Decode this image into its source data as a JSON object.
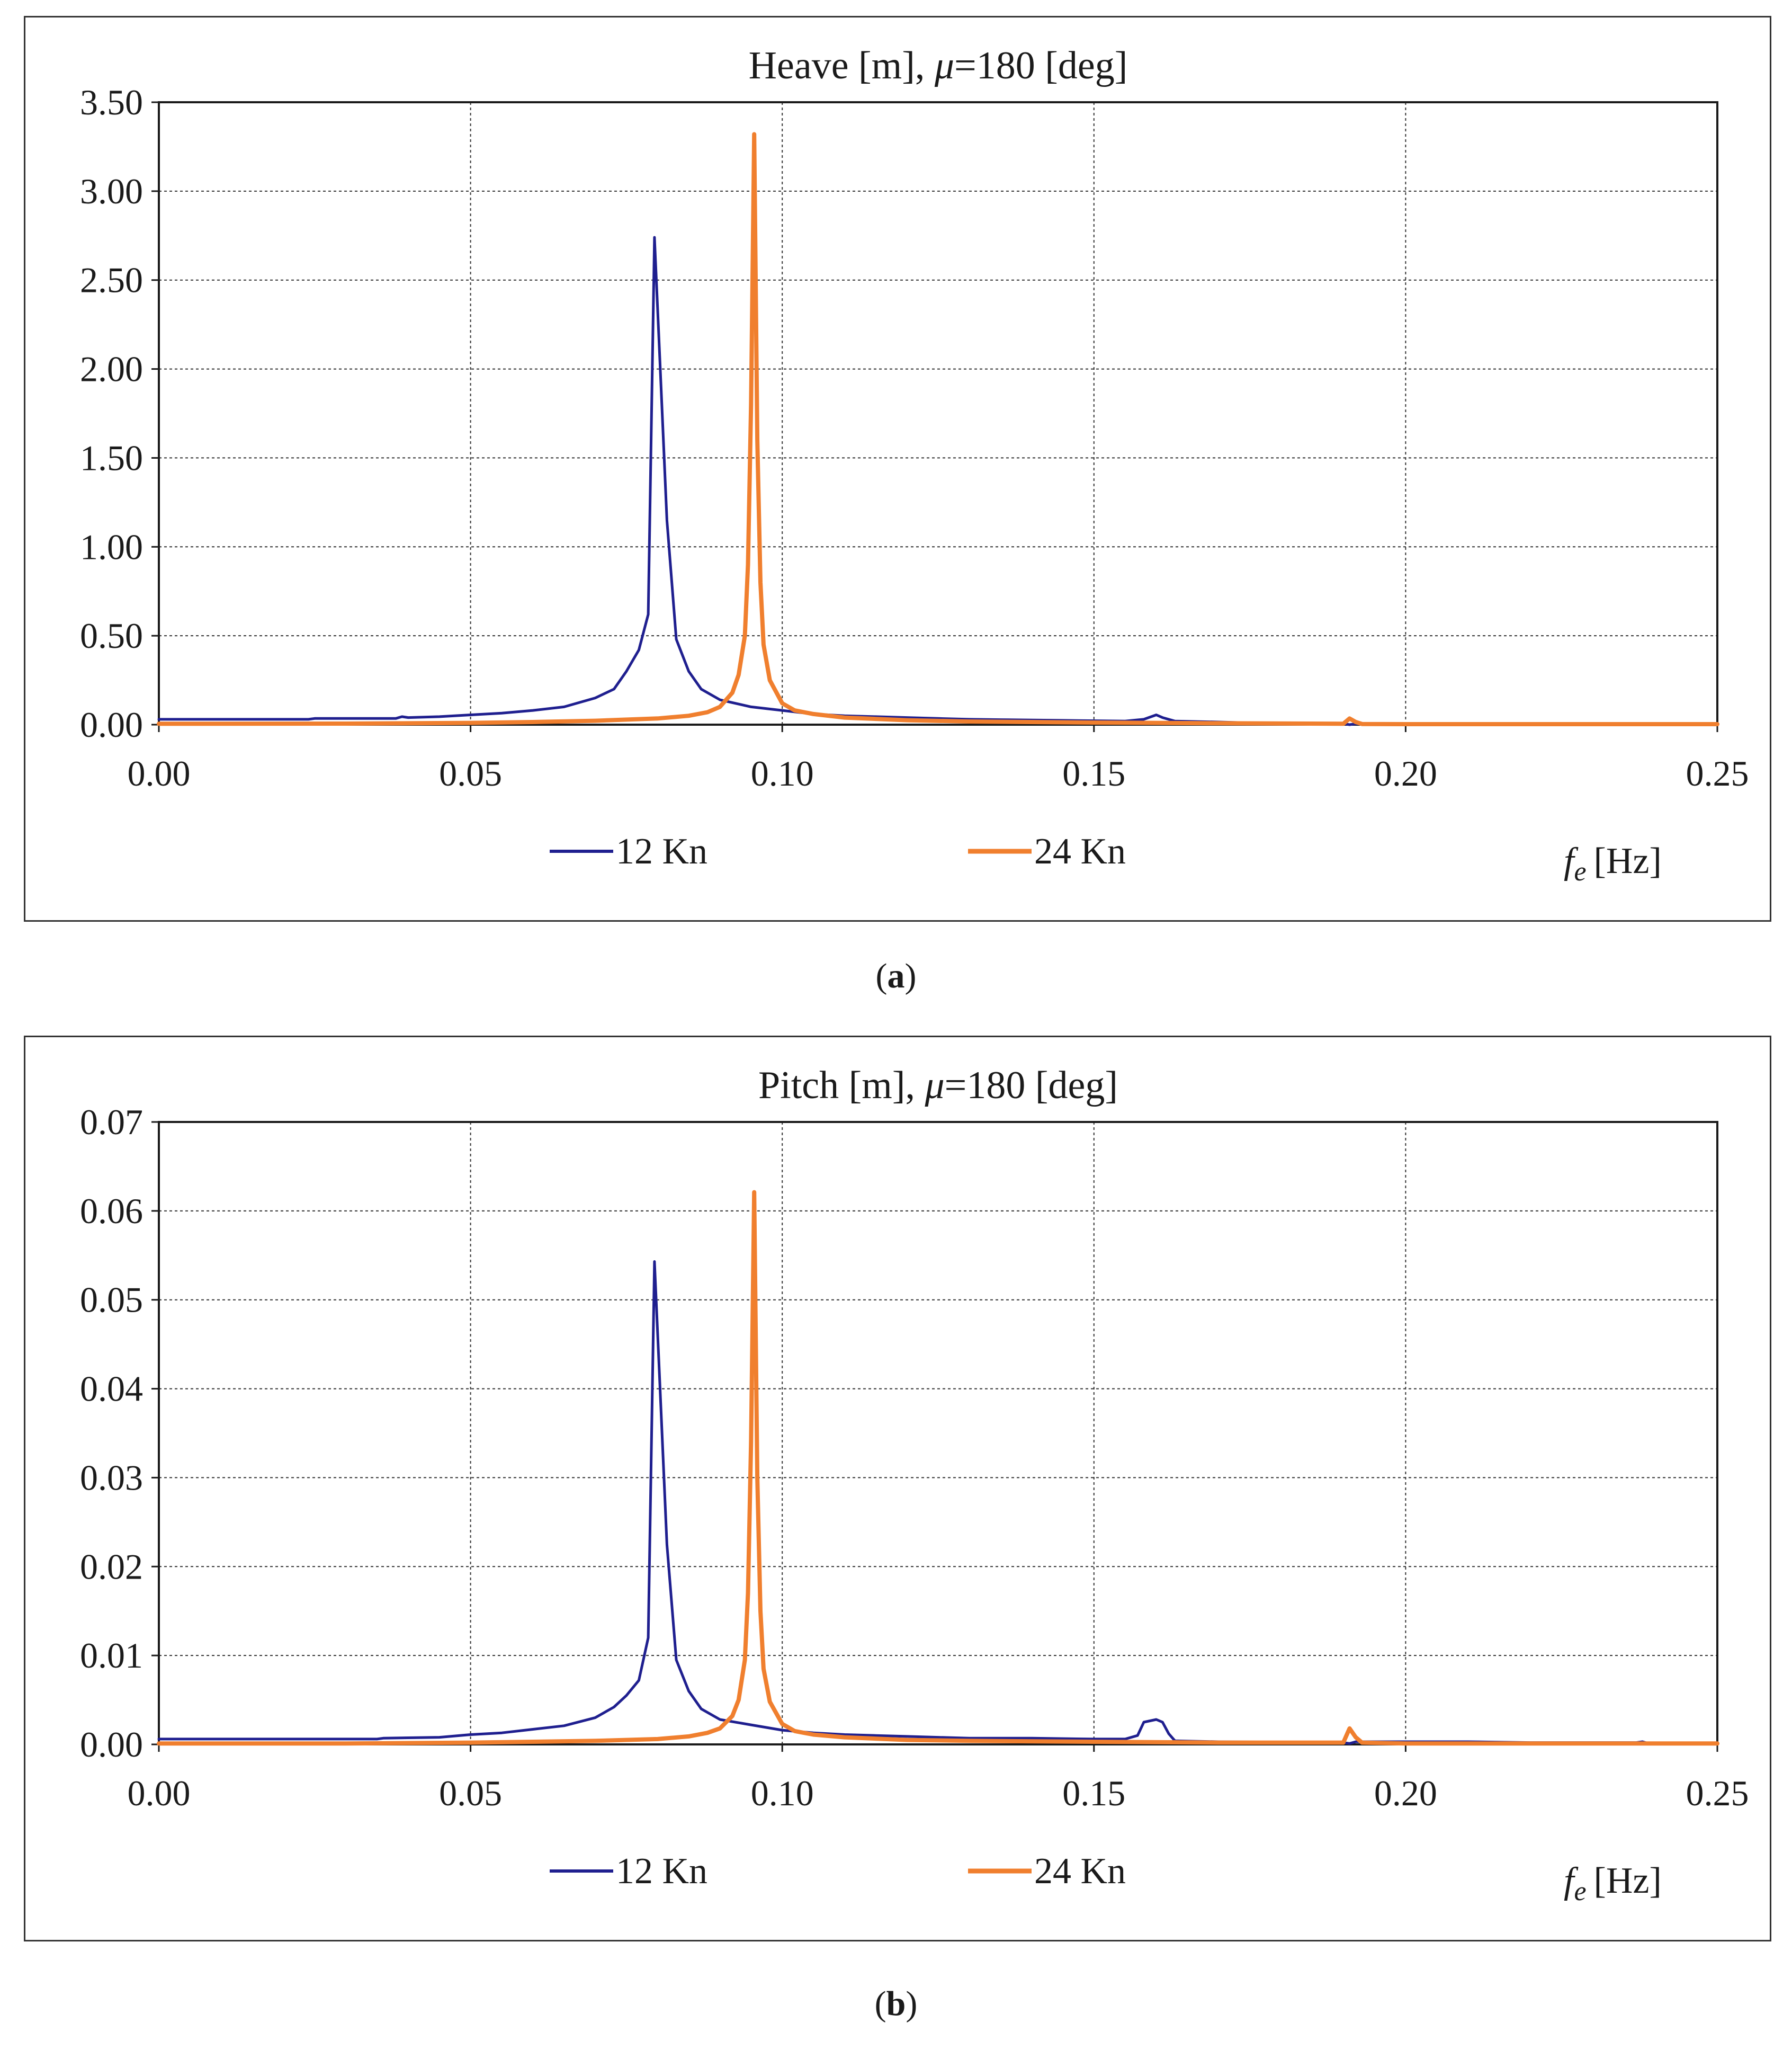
{
  "chart_data": [
    {
      "type": "line",
      "title": {
        "main": "Heave [m],",
        "mu": "μ",
        "rest": "=180 [deg]"
      },
      "xlabel": {
        "var": "f",
        "sub": "e",
        "unit": "[Hz]"
      },
      "ylabel": "",
      "xlim": [
        0.0,
        0.25
      ],
      "ylim": [
        0.0,
        3.5
      ],
      "xticks": [
        "0.00",
        "0.05",
        "0.10",
        "0.15",
        "0.20",
        "0.25"
      ],
      "yticks": [
        "0.00",
        "0.50",
        "1.00",
        "1.50",
        "2.00",
        "2.50",
        "3.00",
        "3.50"
      ],
      "grid": true,
      "legend_position": "bottom",
      "series": [
        {
          "name": "12 Kn",
          "color": "#1f1f8f",
          "x": [
            0.0,
            0.024,
            0.025,
            0.038,
            0.039,
            0.04,
            0.045,
            0.05,
            0.055,
            0.06,
            0.065,
            0.07,
            0.073,
            0.075,
            0.077,
            0.0785,
            0.0795,
            0.0815,
            0.083,
            0.085,
            0.087,
            0.09,
            0.095,
            0.1,
            0.105,
            0.11,
            0.115,
            0.12,
            0.125,
            0.13,
            0.135,
            0.14,
            0.145,
            0.15,
            0.155,
            0.158,
            0.16,
            0.161,
            0.163,
            0.17,
            0.175,
            0.18,
            0.19,
            0.191,
            0.192,
            0.2,
            0.25
          ],
          "y": [
            0.03,
            0.03,
            0.035,
            0.035,
            0.045,
            0.04,
            0.045,
            0.055,
            0.065,
            0.08,
            0.1,
            0.15,
            0.2,
            0.3,
            0.42,
            0.62,
            2.74,
            1.15,
            0.48,
            0.3,
            0.2,
            0.14,
            0.1,
            0.08,
            0.06,
            0.05,
            0.045,
            0.04,
            0.035,
            0.03,
            0.028,
            0.026,
            0.024,
            0.022,
            0.02,
            0.03,
            0.055,
            0.04,
            0.02,
            0.015,
            0.01,
            0.008,
            0.006,
            0.0,
            0.005,
            0.004,
            0.004
          ]
        },
        {
          "name": "24 Kn",
          "color": "#f07f2e",
          "x": [
            0.0,
            0.03,
            0.05,
            0.06,
            0.07,
            0.08,
            0.085,
            0.088,
            0.09,
            0.092,
            0.093,
            0.094,
            0.0945,
            0.095,
            0.0955,
            0.096,
            0.0965,
            0.097,
            0.098,
            0.1,
            0.102,
            0.105,
            0.11,
            0.12,
            0.13,
            0.15,
            0.17,
            0.19,
            0.191,
            0.192,
            0.193,
            0.2,
            0.25
          ],
          "y": [
            0.005,
            0.006,
            0.01,
            0.015,
            0.022,
            0.035,
            0.05,
            0.07,
            0.1,
            0.18,
            0.28,
            0.5,
            0.9,
            1.8,
            3.32,
            1.6,
            0.8,
            0.45,
            0.25,
            0.12,
            0.08,
            0.06,
            0.04,
            0.025,
            0.018,
            0.012,
            0.008,
            0.005,
            0.035,
            0.015,
            0.004,
            0.003,
            0.003
          ]
        }
      ]
    },
    {
      "type": "line",
      "title": {
        "main": "Pitch [m],",
        "mu": "μ",
        "rest": "=180 [deg]"
      },
      "xlabel": {
        "var": "f",
        "sub": "e",
        "unit": "[Hz]"
      },
      "ylabel": "",
      "xlim": [
        0.0,
        0.25
      ],
      "ylim": [
        0.0,
        0.07
      ],
      "xticks": [
        "0.00",
        "0.05",
        "0.10",
        "0.15",
        "0.20",
        "0.25"
      ],
      "yticks": [
        "0.00",
        "0.01",
        "0.02",
        "0.03",
        "0.04",
        "0.05",
        "0.06",
        "0.07"
      ],
      "grid": true,
      "legend_position": "bottom",
      "series": [
        {
          "name": "12 Kn",
          "color": "#1f1f8f",
          "x": [
            0.0,
            0.035,
            0.036,
            0.045,
            0.05,
            0.055,
            0.06,
            0.065,
            0.07,
            0.073,
            0.075,
            0.077,
            0.0785,
            0.0795,
            0.0815,
            0.083,
            0.085,
            0.087,
            0.09,
            0.095,
            0.1,
            0.105,
            0.11,
            0.115,
            0.12,
            0.125,
            0.13,
            0.14,
            0.15,
            0.155,
            0.157,
            0.158,
            0.16,
            0.161,
            0.162,
            0.163,
            0.17,
            0.19,
            0.191,
            0.192,
            0.2,
            0.21,
            0.22,
            0.23,
            0.237,
            0.238,
            0.239,
            0.25
          ],
          "y": [
            0.0006,
            0.0006,
            0.0007,
            0.0008,
            0.0011,
            0.0013,
            0.0017,
            0.0021,
            0.003,
            0.0042,
            0.0055,
            0.0072,
            0.012,
            0.0543,
            0.0225,
            0.0095,
            0.006,
            0.004,
            0.0028,
            0.0022,
            0.0016,
            0.0013,
            0.0011,
            0.001,
            0.0009,
            0.0008,
            0.0007,
            0.0007,
            0.0006,
            0.0006,
            0.001,
            0.0025,
            0.0028,
            0.0025,
            0.0012,
            0.0004,
            0.0003,
            0.0002,
            0.0001,
            0.0003,
            0.0003,
            0.0003,
            0.0002,
            0.0002,
            0.0002,
            0.0003,
            0.0001,
            0.0001
          ]
        },
        {
          "name": "24 Kn",
          "color": "#f07f2e",
          "x": [
            0.0,
            0.03,
            0.05,
            0.06,
            0.07,
            0.08,
            0.085,
            0.088,
            0.09,
            0.092,
            0.093,
            0.094,
            0.0945,
            0.095,
            0.0955,
            0.096,
            0.0965,
            0.097,
            0.098,
            0.1,
            0.102,
            0.105,
            0.11,
            0.12,
            0.13,
            0.15,
            0.17,
            0.19,
            0.191,
            0.192,
            0.193,
            0.2,
            0.25
          ],
          "y": [
            0.0001,
            0.0001,
            0.0002,
            0.0003,
            0.0004,
            0.0006,
            0.0009,
            0.0013,
            0.0018,
            0.0032,
            0.005,
            0.0095,
            0.017,
            0.034,
            0.0621,
            0.03,
            0.015,
            0.0085,
            0.0048,
            0.0023,
            0.0015,
            0.0011,
            0.0008,
            0.0005,
            0.0004,
            0.0003,
            0.0002,
            0.0002,
            0.0018,
            0.0008,
            0.0002,
            0.0001,
            0.0001
          ]
        }
      ]
    }
  ],
  "captions": [
    "a",
    "b"
  ]
}
